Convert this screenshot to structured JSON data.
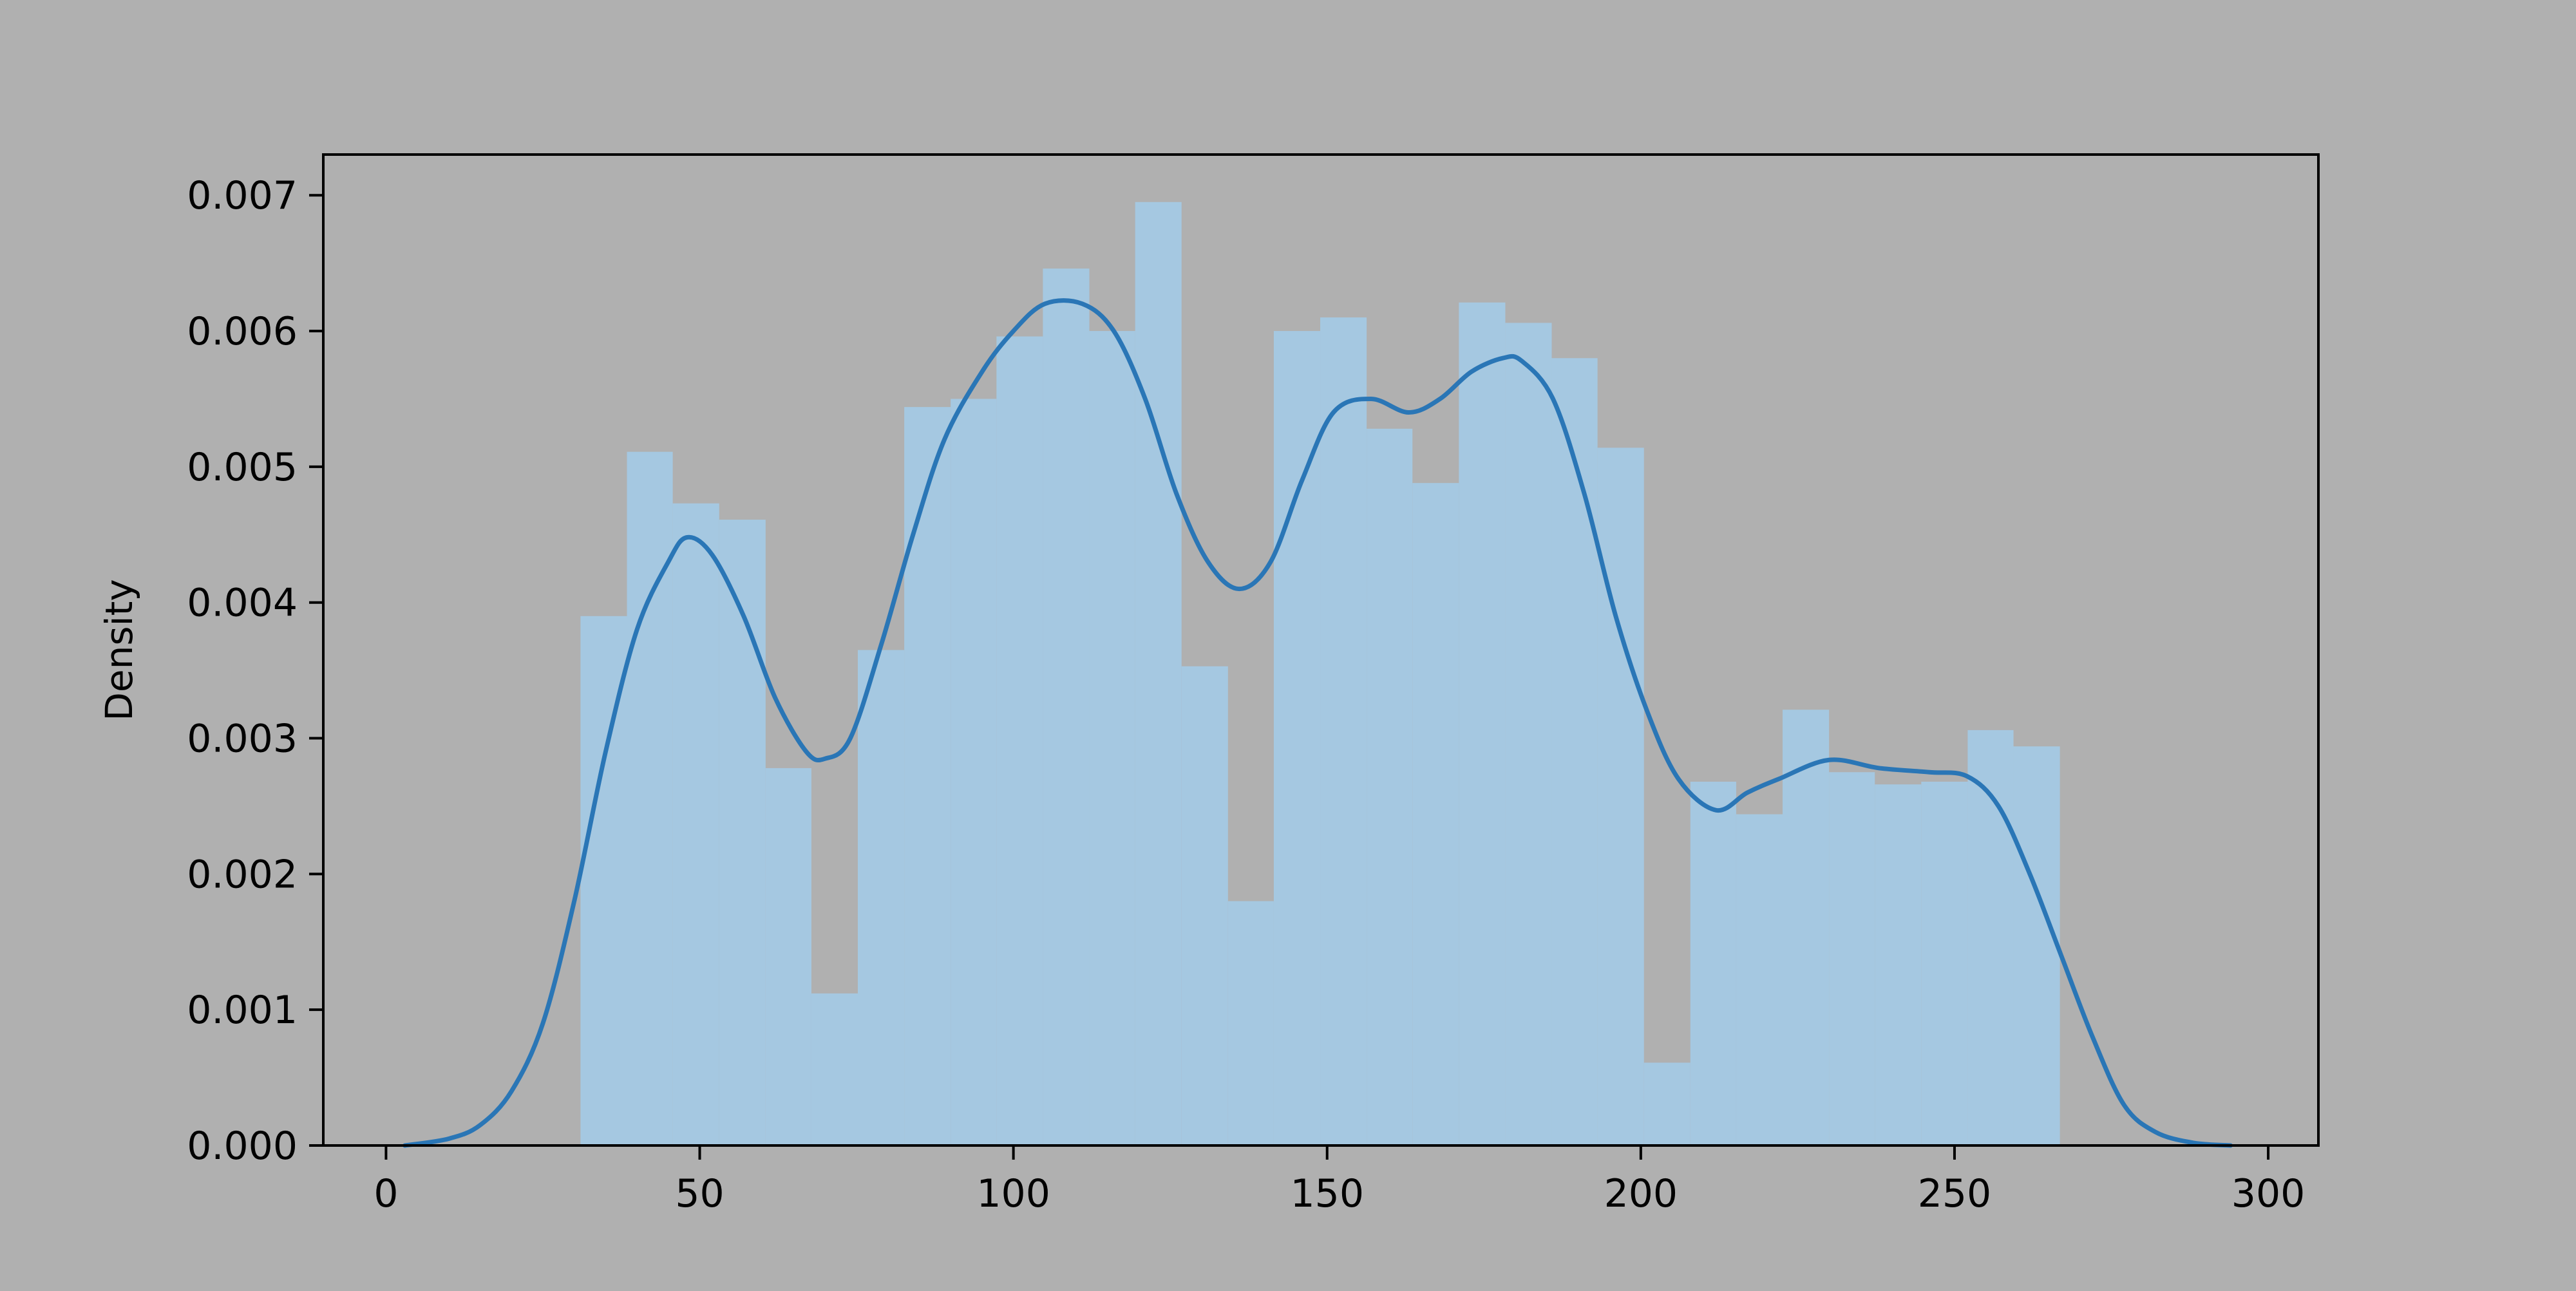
{
  "colors": {
    "background": "#b0b0b0",
    "bar_fill": "#a5c8e1",
    "kde_line": "#2a76b6",
    "axes": "#000000"
  },
  "chart_data": {
    "type": "bar",
    "title": "",
    "xlabel": "",
    "ylabel": "Density",
    "xlim": [
      -10,
      308
    ],
    "ylim": [
      0,
      0.0073
    ],
    "x_ticks": [
      0,
      50,
      100,
      150,
      200,
      250,
      300
    ],
    "x_tick_labels": [
      "0",
      "50",
      "100",
      "150",
      "200",
      "250",
      "300"
    ],
    "y_ticks": [
      0,
      0.001,
      0.002,
      0.003,
      0.004,
      0.005,
      0.006,
      0.007
    ],
    "y_tick_labels": [
      "0.000",
      "0.001",
      "0.002",
      "0.003",
      "0.004",
      "0.005",
      "0.006",
      "0.007"
    ],
    "grid": false,
    "histogram": {
      "bin_edges": [
        31,
        38.4,
        45.7,
        53.1,
        60.5,
        67.8,
        75.2,
        82.6,
        90,
        97.3,
        104.7,
        112.1,
        119.4,
        126.8,
        134.2,
        141.5,
        148.9,
        156.3,
        163.6,
        171,
        178.4,
        185.8,
        193.1,
        200.5,
        207.9,
        215.2,
        222.6,
        230,
        237.3,
        244.7,
        252.1,
        259.4,
        266.8
      ],
      "values": [
        0.0039,
        0.00511,
        0.00473,
        0.00461,
        0.00278,
        0.00112,
        0.00365,
        0.00544,
        0.0055,
        0.00596,
        0.00646,
        0.006,
        0.00695,
        0.00353,
        0.0018,
        0.006,
        0.0061,
        0.00528,
        0.00488,
        0.00621,
        0.00606,
        0.0058,
        0.00514,
        0.00061,
        0.00268,
        0.00244,
        0.00321,
        0.00275,
        0.00266,
        0.00268,
        0.00306,
        0.00294
      ]
    },
    "kde": {
      "x": [
        3,
        10,
        15,
        20,
        25,
        30,
        35,
        40,
        45,
        48,
        52,
        57,
        62,
        67,
        70,
        74,
        79,
        84,
        89,
        95,
        100,
        105,
        111,
        116,
        121,
        126,
        131,
        136,
        141,
        146,
        151,
        157,
        163,
        168,
        173,
        178,
        181,
        186,
        191,
        196,
        201,
        206,
        212,
        217,
        222,
        230,
        238,
        246,
        252,
        257,
        262,
        267,
        272,
        277,
        282,
        288,
        294
      ],
      "y": [
        0,
        5e-05,
        0.00015,
        0.0004,
        0.0009,
        0.0018,
        0.0029,
        0.0038,
        0.0043,
        0.00448,
        0.00435,
        0.0039,
        0.0033,
        0.0029,
        0.00285,
        0.003,
        0.0037,
        0.0045,
        0.0052,
        0.0057,
        0.006,
        0.0062,
        0.0062,
        0.006,
        0.0055,
        0.0048,
        0.0043,
        0.0041,
        0.0043,
        0.0049,
        0.0054,
        0.0055,
        0.0054,
        0.0055,
        0.0057,
        0.0058,
        0.00578,
        0.0055,
        0.0048,
        0.0039,
        0.0032,
        0.0027,
        0.00247,
        0.0026,
        0.0027,
        0.00284,
        0.00278,
        0.00275,
        0.00272,
        0.0025,
        0.002,
        0.0014,
        0.0008,
        0.0003,
        0.0001,
        2e-05,
        0
      ]
    }
  }
}
